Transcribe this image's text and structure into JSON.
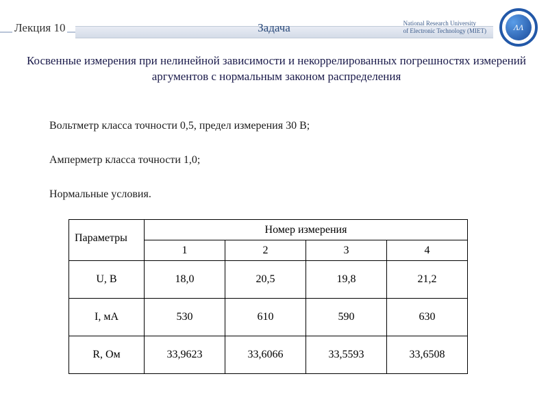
{
  "header": {
    "lecture": "Лекция 10",
    "title": "Задача",
    "university_line1": "National Research University",
    "university_line2": "of Electronic Technology (MIET)",
    "logo_text": "ɅΛ"
  },
  "subtitle": "Косвенные измерения при нелинейной зависимости и некоррелированных погрешностях измерений аргументов с нормальным законом распределения",
  "body": {
    "line1": "Вольтметр класса точности 0,5, предел измерения 30 В;",
    "line2": "Амперметр класса точности 1,0;",
    "line3": "Нормальные условия."
  },
  "table": {
    "param_header": "Параметры",
    "measurement_header": "Номер измерения",
    "col_numbers": [
      "1",
      "2",
      "3",
      "4"
    ],
    "rows": [
      {
        "label": "U, В",
        "values": [
          "18,0",
          "20,5",
          "19,8",
          "21,2"
        ]
      },
      {
        "label": "I, мА",
        "values": [
          "530",
          "610",
          "590",
          "630"
        ]
      },
      {
        "label": "R, Ом",
        "values": [
          "33,9623",
          "33,6066",
          "33,5593",
          "33,6508"
        ]
      }
    ]
  },
  "colors": {
    "header_gradient_top": "#e8ecf4",
    "header_gradient_bottom": "#d4dce8",
    "logo_ring": "#2258a8",
    "logo_fill_light": "#5a9de8",
    "logo_fill_dark": "#1a4a9a",
    "title_color": "#2a4a7a",
    "subtitle_color": "#1a1a4a",
    "text_color": "#1a1a1a",
    "border_color": "#000000"
  }
}
